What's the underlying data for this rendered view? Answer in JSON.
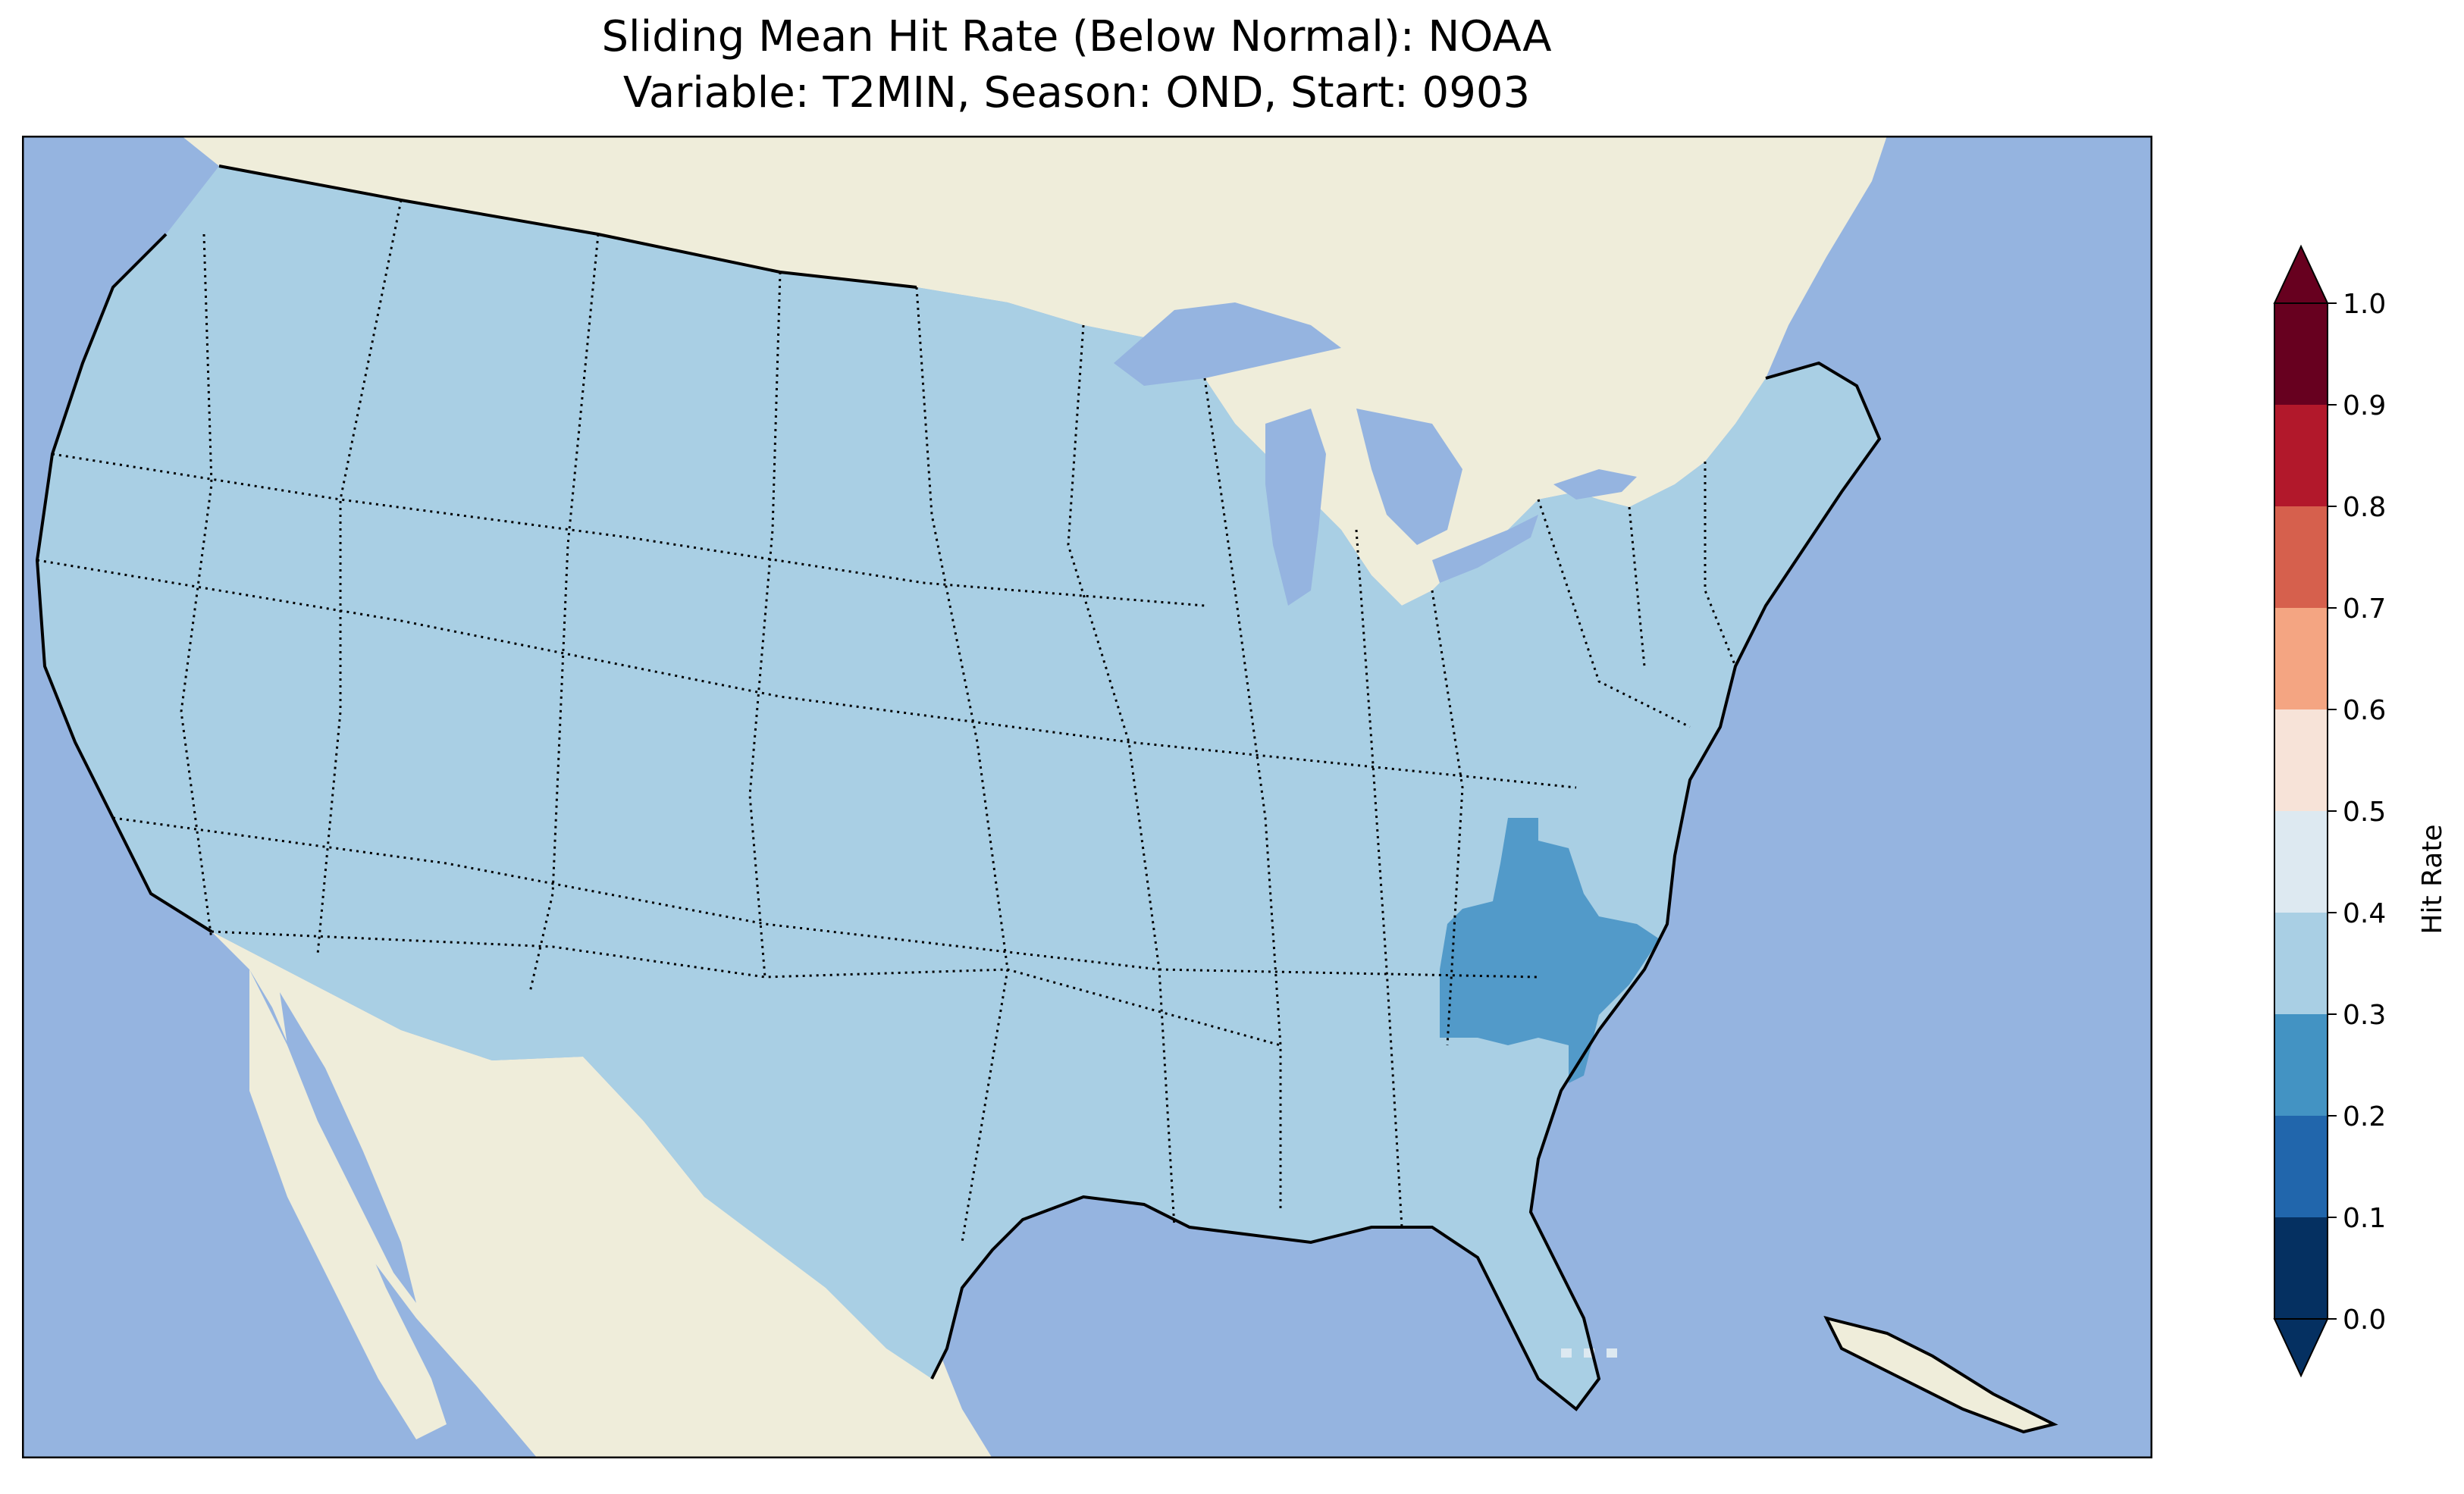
{
  "title": {
    "line1": "Sliding Mean Hit Rate (Below Normal): NOAA",
    "line2": "Variable: T2MIN, Season: OND, Start: 0903"
  },
  "colors": {
    "ocean": "#95b4e0",
    "land": "#efedda",
    "hitrate_0.3_0.4": "#a9cfe4",
    "hitrate_0.2_0.3": "#529ac9",
    "hitrate_0.4_0.5": "#dde9f1"
  },
  "map_regions": {
    "conus_value_bin": "0.3-0.4",
    "southeast_value_bin": "0.2-0.3",
    "florida_keys_value_bin": "0.4-0.5"
  },
  "colorbar": {
    "label": "Hit Rate",
    "ticks": [
      "0.0",
      "0.1",
      "0.2",
      "0.3",
      "0.4",
      "0.5",
      "0.6",
      "0.7",
      "0.8",
      "0.9",
      "1.0"
    ],
    "bins": [
      {
        "from": 0.0,
        "to": 0.1,
        "color": "#053061"
      },
      {
        "from": 0.1,
        "to": 0.2,
        "color": "#2166ac"
      },
      {
        "from": 0.2,
        "to": 0.3,
        "color": "#4393c3"
      },
      {
        "from": 0.3,
        "to": 0.4,
        "color": "#a9cfe4"
      },
      {
        "from": 0.4,
        "to": 0.5,
        "color": "#dde9f1"
      },
      {
        "from": 0.5,
        "to": 0.6,
        "color": "#f7e3d8"
      },
      {
        "from": 0.6,
        "to": 0.7,
        "color": "#f4a582"
      },
      {
        "from": 0.7,
        "to": 0.8,
        "color": "#d6604d"
      },
      {
        "from": 0.8,
        "to": 0.9,
        "color": "#b2182b"
      },
      {
        "from": 0.9,
        "to": 1.0,
        "color": "#67001f"
      }
    ],
    "extend_low_color": "#053061",
    "extend_high_color": "#67001f"
  }
}
